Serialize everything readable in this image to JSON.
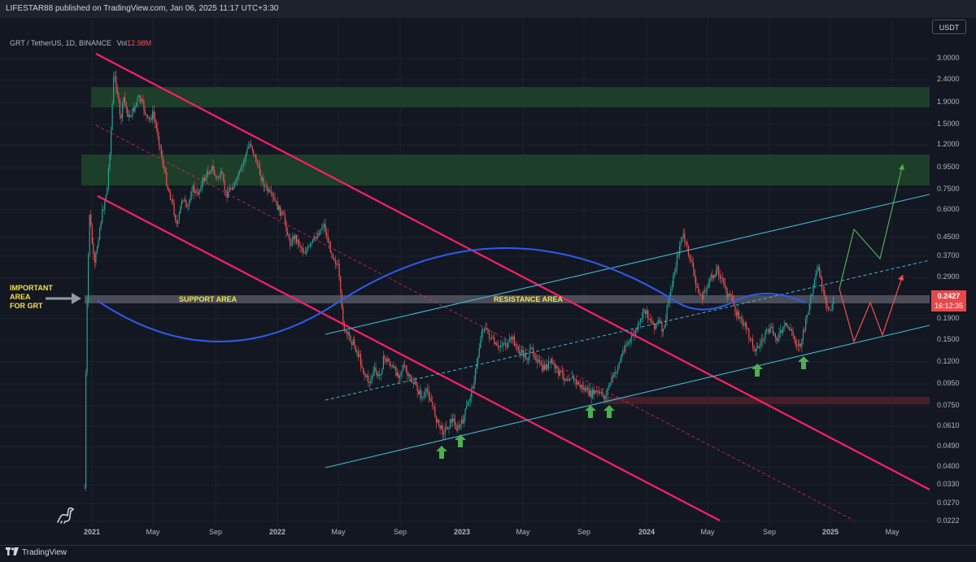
{
  "header": {
    "publisher_line": "LIFESTAR88 published on TradingView.com, Jan 06, 2025 11:17 UTC+3:30"
  },
  "symbol": {
    "pair": "GRT / TetherUS, 1D, BINANCE",
    "vol_label": "Vol",
    "vol_value": "12.98M"
  },
  "currency_button": "USDT",
  "price_axis": [
    "3.0000",
    "2.4000",
    "1.9000",
    "1.5000",
    "1.2000",
    "0.9500",
    "0.7500",
    "0.6000",
    "0.4500",
    "0.3700",
    "0.2900",
    "0.1900",
    "0.1500",
    "0.1200",
    "0.0950",
    "0.0750",
    "0.0610",
    "0.0490",
    "0.0400",
    "0.0330",
    "0.0270",
    "0.0222"
  ],
  "time_axis": [
    "2021",
    "May",
    "Sep",
    "2022",
    "May",
    "Sep",
    "2023",
    "May",
    "Sep",
    "2024",
    "May",
    "Sep",
    "2025",
    "May"
  ],
  "current_price": {
    "price": "0.2427",
    "countdown": "16:12:35"
  },
  "annotations": {
    "important_area": [
      "IMPORTANT",
      "AREA",
      "FOR GRT"
    ],
    "support_area": "SUPPORT AREA",
    "resistance_area": "RESISTANCE AREA"
  },
  "colors": {
    "background": "#131722",
    "up_candle": "#26a69a",
    "down_candle": "#ef5350",
    "channel_pink": "#ff1f6a",
    "channel_cyan": "#3fb8d4",
    "arc_blue": "#2f5bea",
    "zone_green": "#1b3b27",
    "zone_red": "#4a1f28",
    "price_tag": "#e8484a"
  },
  "footer": {
    "brand": "TradingView"
  },
  "icons": {
    "logo": "tradingview-logo-icon",
    "watermark": "dinosaur-icon",
    "markers": "green-up-arrow-icon"
  }
}
